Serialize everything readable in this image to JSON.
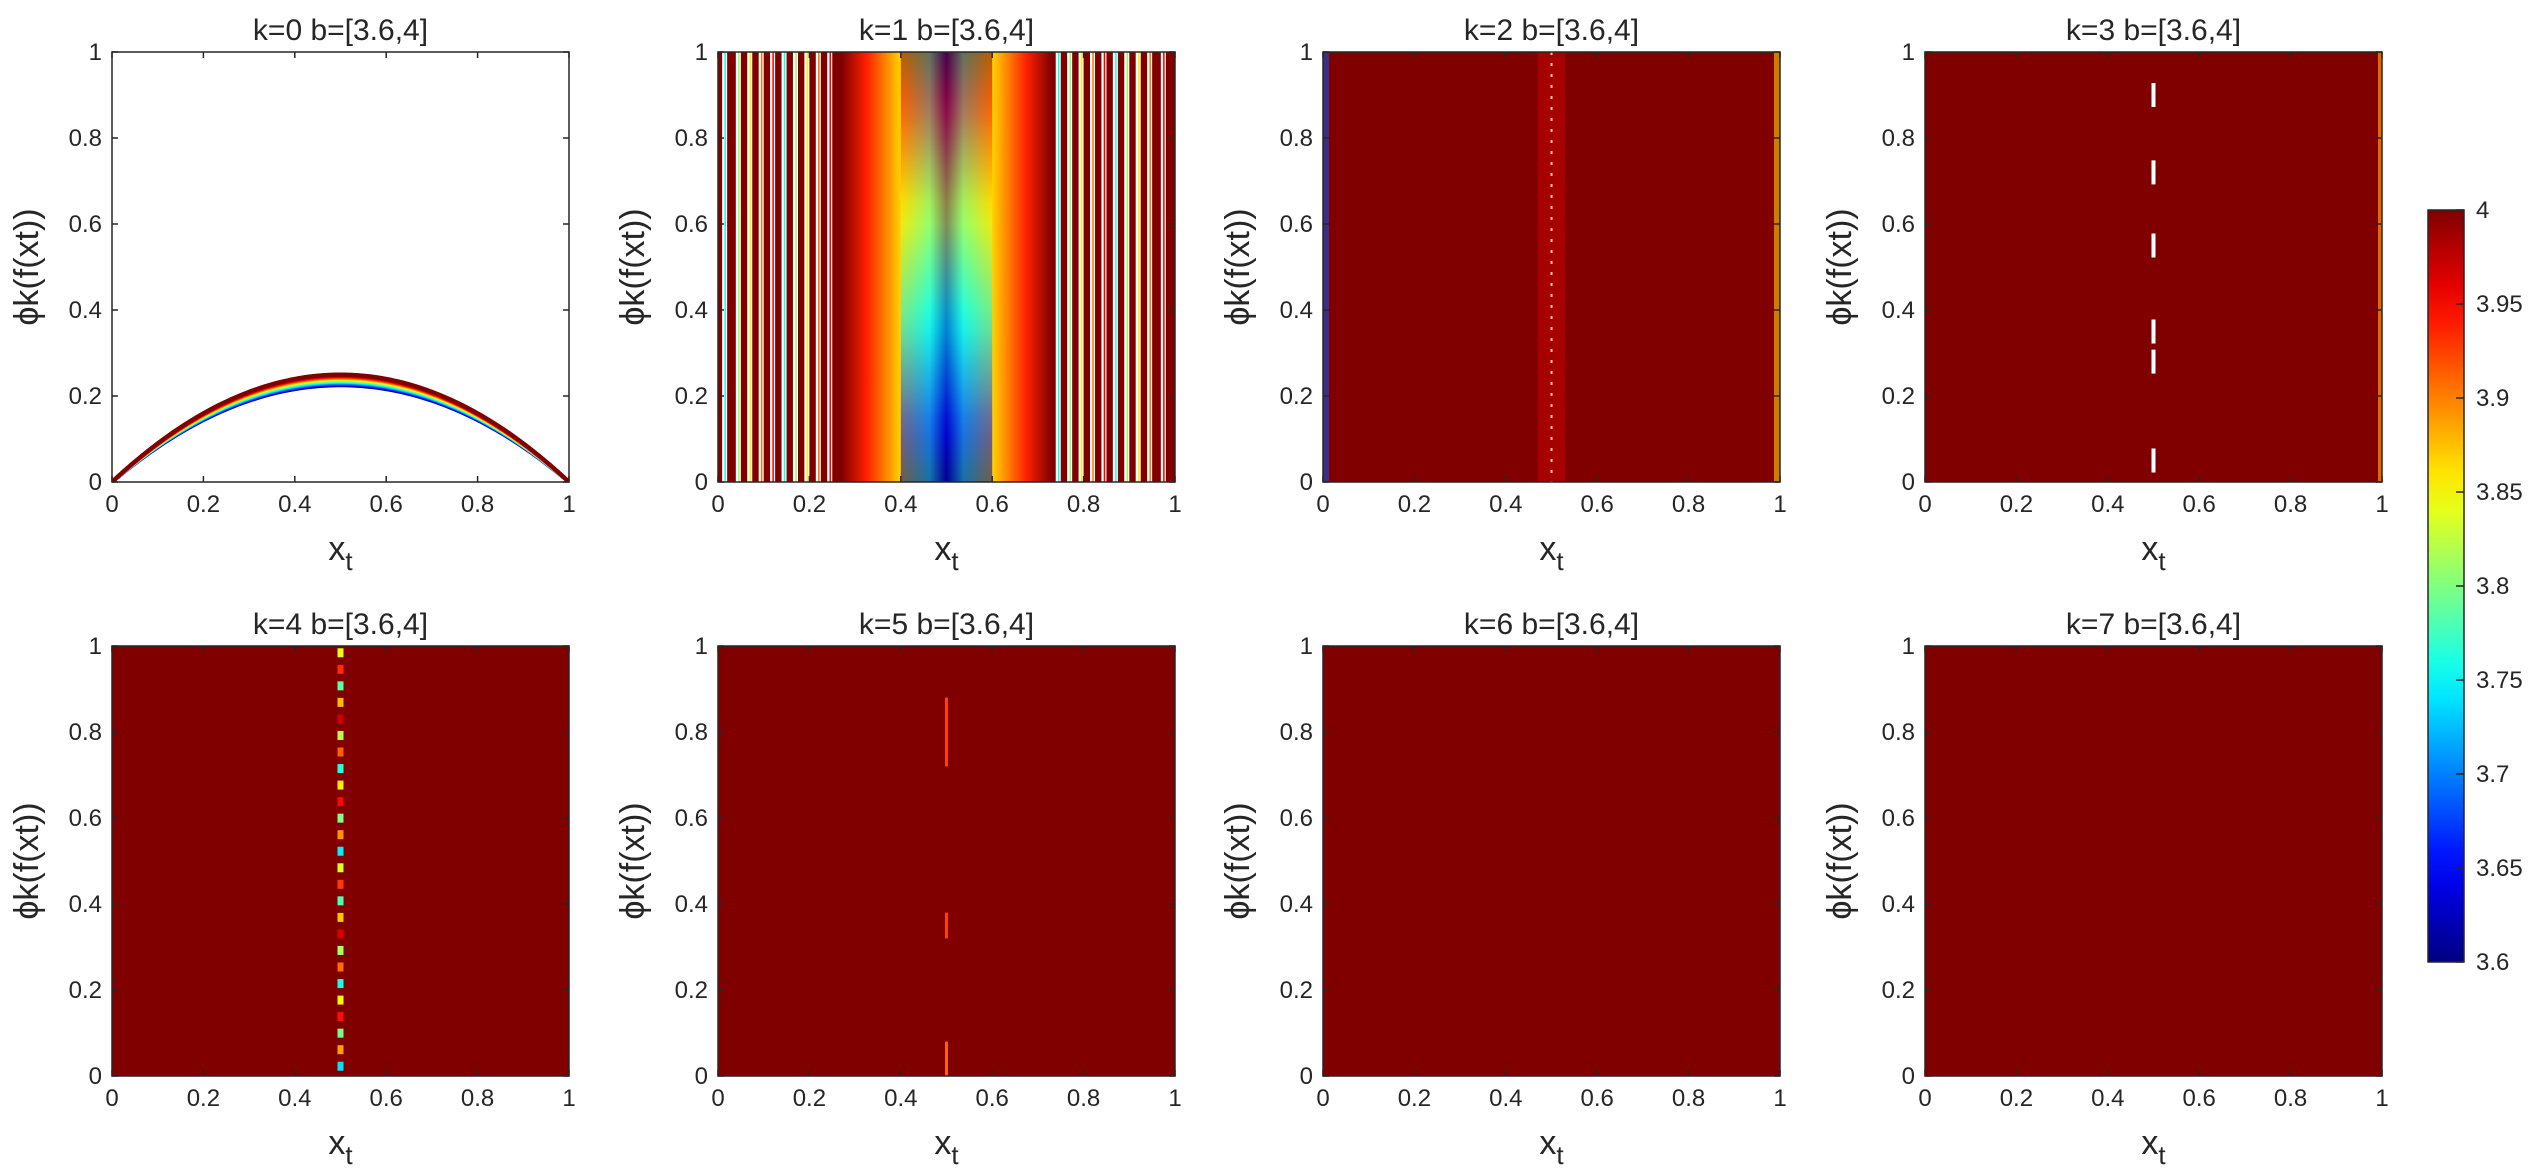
{
  "chart_data": {
    "type": "heatmap",
    "description_grid": "2x4 subplot grid sharing one colorbar",
    "panels": [
      {
        "title": "k=0  b=[3.6,4]",
        "k": 0,
        "pattern": "parabola"
      },
      {
        "title": "k=1  b=[3.6,4]",
        "k": 1,
        "pattern": "fringes"
      },
      {
        "title": "k=2  b=[3.6,4]",
        "k": 2,
        "pattern": "saturated"
      },
      {
        "title": "k=3  b=[3.6,4]",
        "k": 3,
        "pattern": "saturated"
      },
      {
        "title": "k=4  b=[3.6,4]",
        "k": 4,
        "pattern": "saturated"
      },
      {
        "title": "k=5  b=[3.6,4]",
        "k": 5,
        "pattern": "saturated"
      },
      {
        "title": "k=6  b=[3.6,4]",
        "k": 6,
        "pattern": "saturated"
      },
      {
        "title": "k=7  b=[3.6,4]",
        "k": 7,
        "pattern": "saturated"
      }
    ],
    "xlabel_main": "x",
    "xlabel_sub": "t",
    "ylabel_text": "ϕk(f(xt))",
    "xlim": [
      0,
      1
    ],
    "ylim": [
      0,
      1
    ],
    "xticks": [
      "0",
      "0.2",
      "0.4",
      "0.6",
      "0.8",
      "1"
    ],
    "yticks": [
      "0",
      "0.2",
      "0.4",
      "0.6",
      "0.8",
      "1"
    ],
    "colorbar": {
      "colormap": "jet",
      "range": [
        3.6,
        4
      ],
      "ticks": [
        "3.6",
        "3.65",
        "3.7",
        "3.75",
        "3.8",
        "3.85",
        "3.9",
        "3.95",
        "4"
      ]
    },
    "colors": {
      "dark_red": "#800000",
      "axis": "#262626"
    }
  }
}
